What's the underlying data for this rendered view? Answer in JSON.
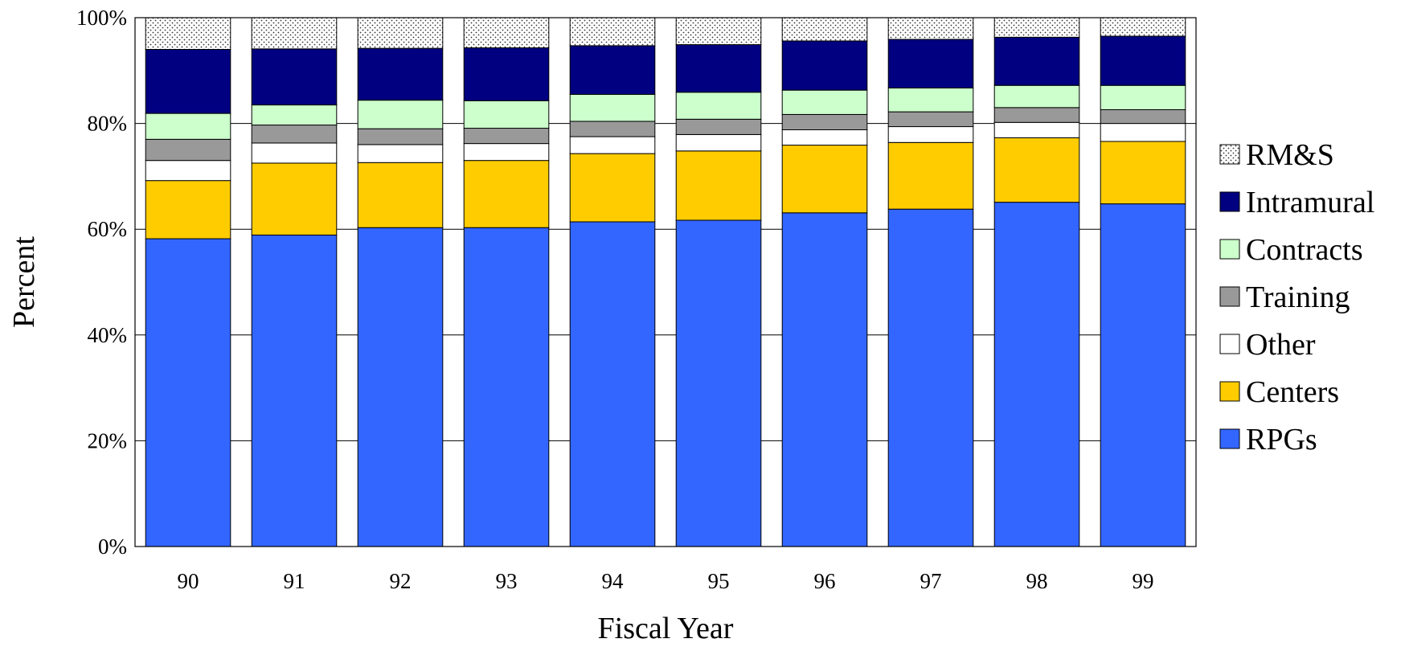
{
  "chart_data": {
    "type": "bar",
    "stacked": true,
    "percent_stacked": true,
    "xlabel": "Fiscal Year",
    "ylabel": "Percent",
    "ylim": [
      0,
      100
    ],
    "y_ticks": [
      0,
      20,
      40,
      60,
      80,
      100
    ],
    "y_tick_labels": [
      "0%",
      "20%",
      "40%",
      "60%",
      "80%",
      "100%"
    ],
    "grid": true,
    "legend_position": "right",
    "categories": [
      "90",
      "91",
      "92",
      "93",
      "94",
      "95",
      "96",
      "97",
      "98",
      "99"
    ],
    "series": [
      {
        "name": "RPGs",
        "color": "#3366ff",
        "pattern": "solid",
        "values": [
          58.2,
          58.9,
          60.3,
          60.3,
          61.4,
          61.7,
          63.1,
          63.8,
          65.1,
          64.8
        ]
      },
      {
        "name": "Centers",
        "color": "#ffcc00",
        "pattern": "solid",
        "values": [
          11.0,
          13.6,
          12.3,
          12.7,
          12.9,
          13.1,
          12.8,
          12.6,
          12.2,
          11.8
        ]
      },
      {
        "name": "Other",
        "color": "#ffffff",
        "pattern": "solid",
        "values": [
          3.8,
          3.8,
          3.4,
          3.2,
          3.2,
          3.1,
          2.9,
          3.0,
          2.9,
          3.4
        ]
      },
      {
        "name": "Training",
        "color": "#999999",
        "pattern": "solid",
        "values": [
          4.0,
          3.4,
          3.0,
          2.9,
          2.9,
          2.9,
          2.9,
          2.8,
          2.8,
          2.6
        ]
      },
      {
        "name": "Contracts",
        "color": "#ccffcc",
        "pattern": "solid",
        "values": [
          4.9,
          3.8,
          5.4,
          5.2,
          5.1,
          5.1,
          4.6,
          4.5,
          4.2,
          4.6
        ]
      },
      {
        "name": "Intramural",
        "color": "#000080",
        "pattern": "solid",
        "values": [
          12.1,
          10.6,
          9.8,
          10.0,
          9.2,
          9.0,
          9.3,
          9.2,
          9.1,
          9.3
        ]
      },
      {
        "name": "RM&S",
        "color": "#ffffff",
        "pattern": "dotted",
        "values": [
          6.0,
          5.9,
          5.8,
          5.7,
          5.3,
          5.1,
          4.4,
          4.1,
          3.7,
          3.5
        ]
      }
    ],
    "legend_order": [
      "RM&S",
      "Intramural",
      "Contracts",
      "Training",
      "Other",
      "Centers",
      "RPGs"
    ]
  }
}
